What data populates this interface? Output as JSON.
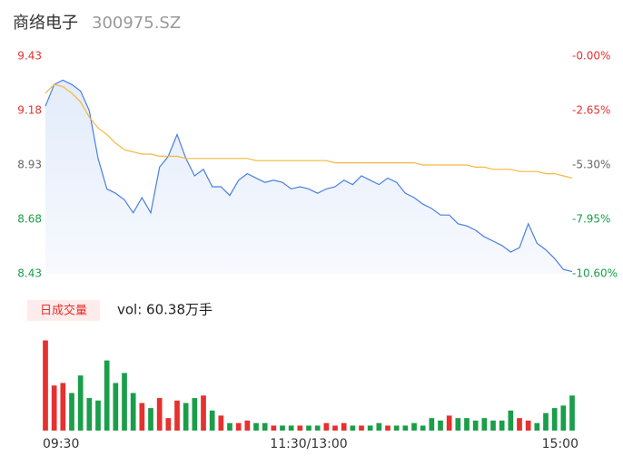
{
  "chart_data": {
    "type": "line",
    "title": "商络电子",
    "subtitle": "300975.SZ",
    "xlim": [
      0,
      240
    ],
    "xticks": [
      {
        "value": 0,
        "label": "09:30"
      },
      {
        "value": 120,
        "label": "11:30/13:00"
      },
      {
        "value": 240,
        "label": "15:00"
      }
    ],
    "ylim": [
      8.43,
      9.43
    ],
    "yticks": [
      9.43,
      9.18,
      8.93,
      8.68,
      8.43
    ],
    "ytick_colors": [
      "#e5312f",
      "#e5312f",
      "#666666",
      "#1a9e4a",
      "#1a9e4a"
    ],
    "y2lim": [
      -10.6,
      0
    ],
    "y2ticks": [
      {
        "value": 0,
        "label": "-0.00%"
      },
      {
        "value": -2.65,
        "label": "-2.65%"
      },
      {
        "value": -5.3,
        "label": "-5.30%"
      },
      {
        "value": -7.95,
        "label": "-7.95%"
      },
      {
        "value": -10.6,
        "label": "-10.60%"
      }
    ],
    "y2tick_colors": [
      "#e5312f",
      "#e5312f",
      "#666666",
      "#1a9e4a",
      "#1a9e4a"
    ],
    "x": [
      0,
      4,
      8,
      12,
      16,
      20,
      24,
      28,
      32,
      36,
      40,
      44,
      48,
      52,
      56,
      60,
      64,
      68,
      72,
      76,
      80,
      84,
      88,
      92,
      96,
      100,
      104,
      108,
      112,
      116,
      120,
      124,
      128,
      132,
      136,
      140,
      144,
      148,
      152,
      156,
      160,
      164,
      168,
      172,
      176,
      180,
      184,
      188,
      192,
      196,
      200,
      204,
      208,
      212,
      216,
      220,
      224,
      228,
      232,
      236,
      240
    ],
    "series": [
      {
        "name": "price",
        "color": "#4a7fe0",
        "values": [
          9.2,
          9.3,
          9.32,
          9.3,
          9.27,
          9.18,
          8.96,
          8.82,
          8.8,
          8.77,
          8.71,
          8.78,
          8.71,
          8.92,
          8.97,
          9.07,
          8.96,
          8.88,
          8.91,
          8.83,
          8.83,
          8.79,
          8.86,
          8.89,
          8.87,
          8.85,
          8.86,
          8.85,
          8.82,
          8.83,
          8.82,
          8.8,
          8.82,
          8.83,
          8.86,
          8.84,
          8.88,
          8.86,
          8.84,
          8.87,
          8.85,
          8.8,
          8.78,
          8.75,
          8.73,
          8.7,
          8.7,
          8.66,
          8.65,
          8.63,
          8.6,
          8.58,
          8.56,
          8.53,
          8.55,
          8.66,
          8.57,
          8.54,
          8.5,
          8.45,
          8.44
        ]
      },
      {
        "name": "average",
        "color": "#f5b83d",
        "values": [
          9.26,
          9.3,
          9.29,
          9.26,
          9.22,
          9.15,
          9.1,
          9.07,
          9.03,
          9.0,
          8.99,
          8.98,
          8.98,
          8.97,
          8.97,
          8.97,
          8.96,
          8.96,
          8.96,
          8.96,
          8.96,
          8.96,
          8.96,
          8.96,
          8.95,
          8.95,
          8.95,
          8.95,
          8.95,
          8.95,
          8.95,
          8.95,
          8.95,
          8.94,
          8.94,
          8.94,
          8.94,
          8.94,
          8.94,
          8.94,
          8.94,
          8.94,
          8.94,
          8.93,
          8.93,
          8.93,
          8.93,
          8.93,
          8.93,
          8.92,
          8.92,
          8.91,
          8.91,
          8.91,
          8.9,
          8.9,
          8.9,
          8.89,
          8.89,
          8.88,
          8.87
        ]
      }
    ],
    "volume": {
      "legend": "日成交量",
      "label": "vol: 60.38万手",
      "ylim": [
        0,
        3.8
      ],
      "up_color": "#e5312f",
      "down_color": "#1a9e4a",
      "values": [
        3.6,
        1.8,
        1.9,
        1.5,
        2.2,
        1.3,
        1.2,
        2.8,
        1.9,
        2.3,
        1.5,
        1.1,
        0.9,
        1.3,
        0.5,
        1.2,
        1.1,
        1.3,
        1.4,
        0.8,
        0.6,
        0.3,
        0.3,
        0.4,
        0.3,
        0.3,
        0.2,
        0.2,
        0.2,
        0.2,
        0.2,
        0.2,
        0.3,
        0.2,
        0.3,
        0.2,
        0.2,
        0.2,
        0.3,
        0.2,
        0.2,
        0.2,
        0.3,
        0.2,
        0.5,
        0.4,
        0.6,
        0.5,
        0.5,
        0.4,
        0.5,
        0.4,
        0.4,
        0.8,
        0.5,
        0.4,
        0.3,
        0.7,
        0.9,
        1.0,
        1.4
      ]
    }
  }
}
